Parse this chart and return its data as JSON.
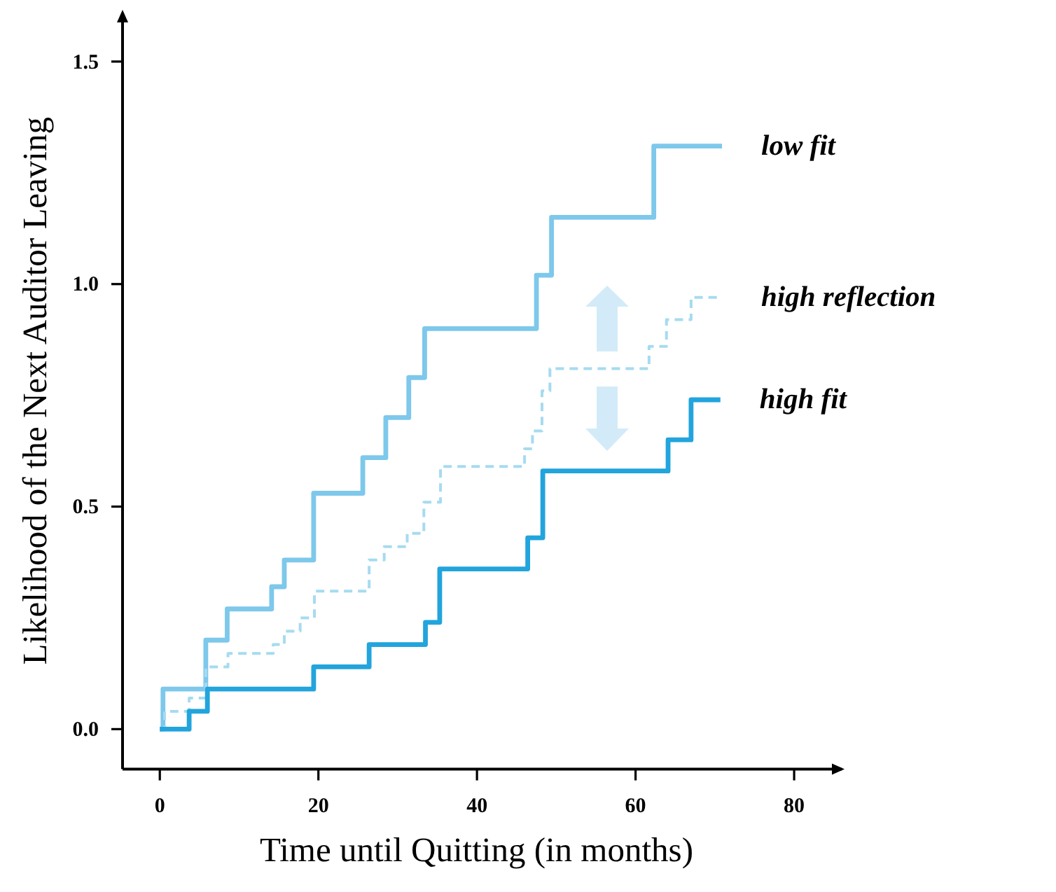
{
  "chart_data": {
    "type": "step",
    "xlabel": "Time until Quitting (in months)",
    "ylabel": "Likelihood of the Next Auditor Leaving",
    "xlim": [
      -4.7,
      86
    ],
    "ylim": [
      -0.09,
      1.61
    ],
    "xticks": [
      0,
      20,
      40,
      60,
      80
    ],
    "yticks": [
      {
        "value": 0,
        "label": "0.0"
      },
      0.5,
      {
        "value": 1,
        "label": "1.0"
      },
      1.5
    ],
    "line_style": "solid",
    "series": [
      {
        "name": "low fit",
        "color": "#7dc8eb",
        "x": [
          0,
          0.4,
          5.8,
          8.5,
          14.1,
          15.7,
          19.4,
          25.6,
          28.5,
          31.4,
          33.4,
          47.5,
          49.4,
          62.3,
          70.9
        ],
        "values": [
          0,
          0.09,
          0.2,
          0.27,
          0.32,
          0.38,
          0.53,
          0.61,
          0.7,
          0.79,
          0.9,
          1.02,
          1.15,
          1.31,
          1.31
        ]
      },
      {
        "name": "high reflection",
        "color": "#a6dbf0",
        "line_style": "dashed",
        "x": [
          0,
          0.6,
          3.7,
          5.8,
          8.6,
          14.3,
          15.7,
          17.7,
          19.5,
          26.4,
          28.3,
          31.2,
          33.3,
          35.4,
          46,
          47,
          48.2,
          49.2,
          61.7,
          63.9,
          67,
          70.9
        ],
        "values": [
          0,
          0.04,
          0.07,
          0.14,
          0.17,
          0.19,
          0.22,
          0.25,
          0.31,
          0.38,
          0.41,
          0.44,
          0.51,
          0.59,
          0.63,
          0.67,
          0.76,
          0.81,
          0.86,
          0.92,
          0.97,
          0.97
        ]
      },
      {
        "name": "high fit",
        "color": "#22a4dc",
        "x": [
          0,
          3.7,
          6,
          19.4,
          26.4,
          33.5,
          35.3,
          46.4,
          48.3,
          64.1,
          67,
          70.7
        ],
        "values": [
          0,
          0.04,
          0.09,
          0.14,
          0.19,
          0.24,
          0.36,
          0.43,
          0.58,
          0.65,
          0.74,
          0.74
        ]
      }
    ]
  }
}
